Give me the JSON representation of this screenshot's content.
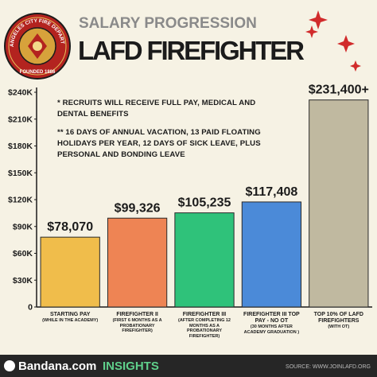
{
  "chart_data": {
    "type": "bar",
    "subtitle": "SALARY PROGRESSION",
    "title": "LAFD FIREFIGHTER",
    "logo_text": "LOS ANGELES CITY FIRE DEPARTMENT",
    "logo_founded": "FOUNDED 1886",
    "notes": [
      "* RECRUITS WILL RECEIVE FULL PAY, MEDICAL AND DENTAL  BENEFITS",
      "** 16 DAYS OF ANNUAL VACATION, 13 PAID FLOATING HOLIDAYS PER YEAR, 12 DAYS OF SICK LEAVE, PLUS PERSONAL AND BONDING LEAVE"
    ],
    "categories": [
      "STARTING PAY",
      "FIREFIGHTER II",
      "FIREFIGHTER III",
      "FIREFIGHTER III TOP PAY - NO OT",
      "TOP 10% OF LAFD FIREFIGHTERS"
    ],
    "category_notes": [
      "(WHILE IN THE ACADEMY)",
      "(FIRST 6 MONTHS AS A PROBATIONARY FIREFIGHTER)",
      "(AFTER COMPLETING 12 MONTHS AS A PROBATIONARY FIREFIGHTER)",
      "(30 MONTHS AFTER ACADEMY GRADUATION )",
      "(WITH OT)"
    ],
    "values": [
      78070,
      99326,
      105235,
      117408,
      231400
    ],
    "value_labels": [
      "$78,070",
      "$99,326",
      "$105,235",
      "$117,408",
      "$231,400+"
    ],
    "colors": [
      "#f0bd4b",
      "#ee8454",
      "#2fc27a",
      "#4b8ad8",
      "#c0b9a0"
    ],
    "ylim": [
      0,
      240000
    ],
    "yticks": [
      0,
      {
        "value": 30000,
        "label": "$30K"
      },
      {
        "value": 60000,
        "label": "$60K"
      },
      {
        "value": 90000,
        "label": "$90K"
      },
      {
        "value": 120000,
        "label": "$120K"
      },
      {
        "value": 150000,
        "label": "$150K"
      },
      {
        "value": 180000,
        "label": "$180K"
      },
      {
        "value": 210000,
        "label": "$210K"
      },
      {
        "value": 240000,
        "label": "$240K"
      }
    ],
    "grid": false,
    "footer_brand": "Bandana.com",
    "footer_brand_suffix": "INSIGHTS",
    "source": "SOURCE: WWW.JOINLAFD.ORG"
  }
}
